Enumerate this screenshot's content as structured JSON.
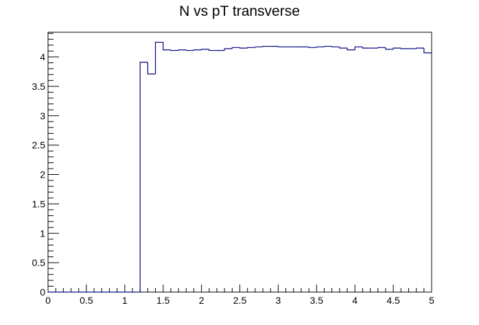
{
  "chart_data": {
    "type": "bar",
    "title": "N vs pT transverse",
    "xlabel": "",
    "ylabel": "",
    "xlim": [
      0,
      5
    ],
    "ylim": [
      0,
      4.42
    ],
    "grid": false,
    "legend": "none",
    "line_color": "#000080",
    "x_tick_labels": [
      "0",
      "0.5",
      "1",
      "1.5",
      "2",
      "2.5",
      "3",
      "3.5",
      "4",
      "4.5",
      "5"
    ],
    "y_tick_labels": [
      "0",
      "0.5",
      "1",
      "1.5",
      "2",
      "2.5",
      "3",
      "3.5",
      "4"
    ],
    "bin_edges": [
      0.0,
      0.1,
      0.2,
      0.3,
      0.4,
      0.5,
      0.6,
      0.7,
      0.8,
      0.9,
      1.0,
      1.1,
      1.2,
      1.3,
      1.4,
      1.5,
      1.6,
      1.7,
      1.8,
      1.9,
      2.0,
      2.1,
      2.2,
      2.3,
      2.4,
      2.5,
      2.6,
      2.7,
      2.8,
      2.9,
      3.0,
      3.1,
      3.2,
      3.3,
      3.4,
      3.5,
      3.6,
      3.7,
      3.8,
      3.9,
      4.0,
      4.1,
      4.2,
      4.3,
      4.4,
      4.5,
      4.6,
      4.7,
      4.8,
      4.9,
      5.0
    ],
    "values": [
      0,
      0,
      0,
      0,
      0,
      0,
      0,
      0,
      0,
      0,
      0,
      0,
      3.91,
      3.71,
      4.25,
      4.12,
      4.11,
      4.12,
      4.11,
      4.12,
      4.13,
      4.11,
      4.11,
      4.14,
      4.16,
      4.15,
      4.16,
      4.17,
      4.18,
      4.18,
      4.17,
      4.17,
      4.17,
      4.17,
      4.16,
      4.17,
      4.18,
      4.17,
      4.15,
      4.12,
      4.17,
      4.15,
      4.15,
      4.16,
      4.13,
      4.15,
      4.14,
      4.14,
      4.15,
      4.07
    ]
  }
}
